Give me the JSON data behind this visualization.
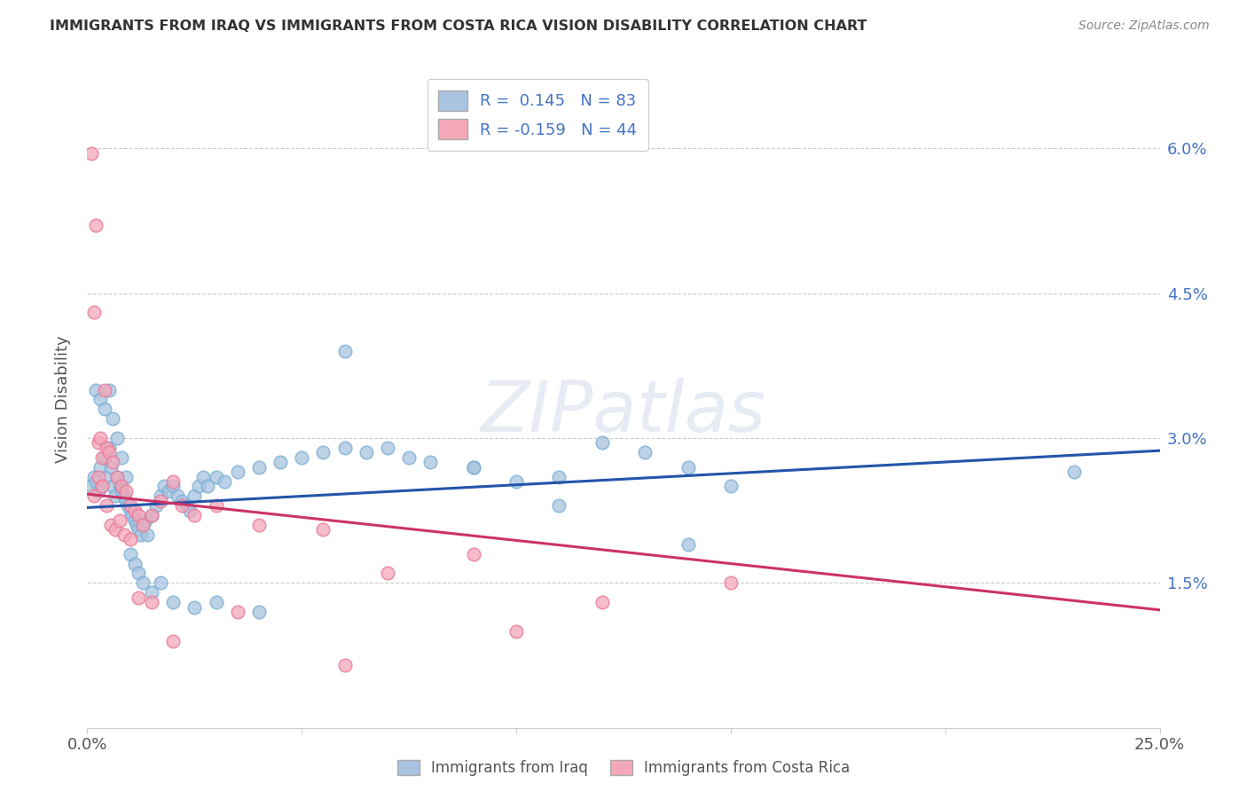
{
  "title": "IMMIGRANTS FROM IRAQ VS IMMIGRANTS FROM COSTA RICA VISION DISABILITY CORRELATION CHART",
  "source": "Source: ZipAtlas.com",
  "ylabel": "Vision Disability",
  "xlim": [
    0.0,
    25.0
  ],
  "ylim_max": 6.8,
  "yticks": [
    0.0,
    1.5,
    3.0,
    4.5,
    6.0
  ],
  "xticks": [
    0.0,
    5.0,
    10.0,
    15.0,
    20.0,
    25.0
  ],
  "xtick_labels": [
    "0.0%",
    "",
    "",
    "",
    "",
    "25.0%"
  ],
  "iraq_R": 0.145,
  "iraq_N": 83,
  "costa_rica_R": -0.159,
  "costa_rica_N": 44,
  "iraq_color": "#a8c4e0",
  "iraq_edge_color": "#7aafd4",
  "costa_rica_color": "#f4a7b9",
  "costa_rica_edge_color": "#e87a9a",
  "iraq_line_color": "#2255aa",
  "costa_rica_line_color": "#cc3366",
  "legend_iraq_label": "Immigrants from Iraq",
  "legend_costa_rica_label": "Immigrants from Costa Rica",
  "background_color": "#ffffff",
  "grid_color": "#cccccc",
  "title_color": "#333333",
  "axis_label_color": "#4472c4",
  "watermark_text": "ZIPatlas",
  "iraq_trend_x0": 0.0,
  "iraq_trend_y0": 2.28,
  "iraq_trend_x1": 25.0,
  "iraq_trend_y1": 2.87,
  "costa_rica_trend_x0": 0.0,
  "costa_rica_trend_y0": 2.42,
  "costa_rica_trend_x1": 25.0,
  "costa_rica_trend_y1": 1.22,
  "iraq_x": [
    0.1,
    0.15,
    0.2,
    0.25,
    0.3,
    0.35,
    0.4,
    0.45,
    0.5,
    0.55,
    0.6,
    0.65,
    0.7,
    0.75,
    0.8,
    0.85,
    0.9,
    0.95,
    1.0,
    1.05,
    1.1,
    1.15,
    1.2,
    1.25,
    1.3,
    1.35,
    1.4,
    1.5,
    1.6,
    1.7,
    1.8,
    1.9,
    2.0,
    2.1,
    2.2,
    2.3,
    2.4,
    2.5,
    2.6,
    2.7,
    2.8,
    3.0,
    3.2,
    3.5,
    4.0,
    4.5,
    5.0,
    5.5,
    6.0,
    6.5,
    7.0,
    7.5,
    8.0,
    9.0,
    10.0,
    11.0,
    12.0,
    13.0,
    14.0,
    15.0,
    0.2,
    0.3,
    0.4,
    0.5,
    0.6,
    0.7,
    0.8,
    0.9,
    1.0,
    1.1,
    1.2,
    1.3,
    1.5,
    1.7,
    2.0,
    2.5,
    3.0,
    4.0,
    6.0,
    9.0,
    11.0,
    14.0,
    23.0
  ],
  "iraq_y": [
    2.5,
    2.6,
    2.55,
    2.45,
    2.7,
    2.5,
    2.8,
    2.6,
    2.9,
    2.7,
    2.5,
    2.4,
    2.6,
    2.5,
    2.45,
    2.4,
    2.35,
    2.3,
    2.25,
    2.2,
    2.15,
    2.1,
    2.05,
    2.0,
    2.1,
    2.15,
    2.0,
    2.2,
    2.3,
    2.4,
    2.5,
    2.45,
    2.5,
    2.4,
    2.35,
    2.3,
    2.25,
    2.4,
    2.5,
    2.6,
    2.5,
    2.6,
    2.55,
    2.65,
    2.7,
    2.75,
    2.8,
    2.85,
    2.9,
    2.85,
    2.9,
    2.8,
    2.75,
    2.7,
    2.55,
    2.6,
    2.95,
    2.85,
    1.9,
    2.5,
    3.5,
    3.4,
    3.3,
    3.5,
    3.2,
    3.0,
    2.8,
    2.6,
    1.8,
    1.7,
    1.6,
    1.5,
    1.4,
    1.5,
    1.3,
    1.25,
    1.3,
    1.2,
    3.9,
    2.7,
    2.3,
    2.7,
    2.65
  ],
  "costa_rica_x": [
    0.1,
    0.15,
    0.2,
    0.25,
    0.3,
    0.35,
    0.4,
    0.45,
    0.5,
    0.6,
    0.7,
    0.8,
    0.9,
    1.0,
    1.1,
    1.2,
    1.3,
    1.5,
    1.7,
    2.0,
    2.2,
    2.5,
    3.0,
    4.0,
    5.5,
    7.0,
    9.0,
    10.0,
    12.0,
    15.0,
    0.15,
    0.25,
    0.35,
    0.45,
    0.55,
    0.65,
    0.75,
    0.85,
    1.0,
    1.2,
    1.5,
    2.0,
    3.5,
    6.0
  ],
  "costa_rica_y": [
    5.95,
    4.3,
    5.2,
    2.95,
    3.0,
    2.8,
    3.5,
    2.9,
    2.85,
    2.75,
    2.6,
    2.5,
    2.45,
    2.3,
    2.25,
    2.2,
    2.1,
    2.2,
    2.35,
    2.55,
    2.3,
    2.2,
    2.3,
    2.1,
    2.05,
    1.6,
    1.8,
    1.0,
    1.3,
    1.5,
    2.4,
    2.6,
    2.5,
    2.3,
    2.1,
    2.05,
    2.15,
    2.0,
    1.95,
    1.35,
    1.3,
    0.9,
    1.2,
    0.65
  ]
}
